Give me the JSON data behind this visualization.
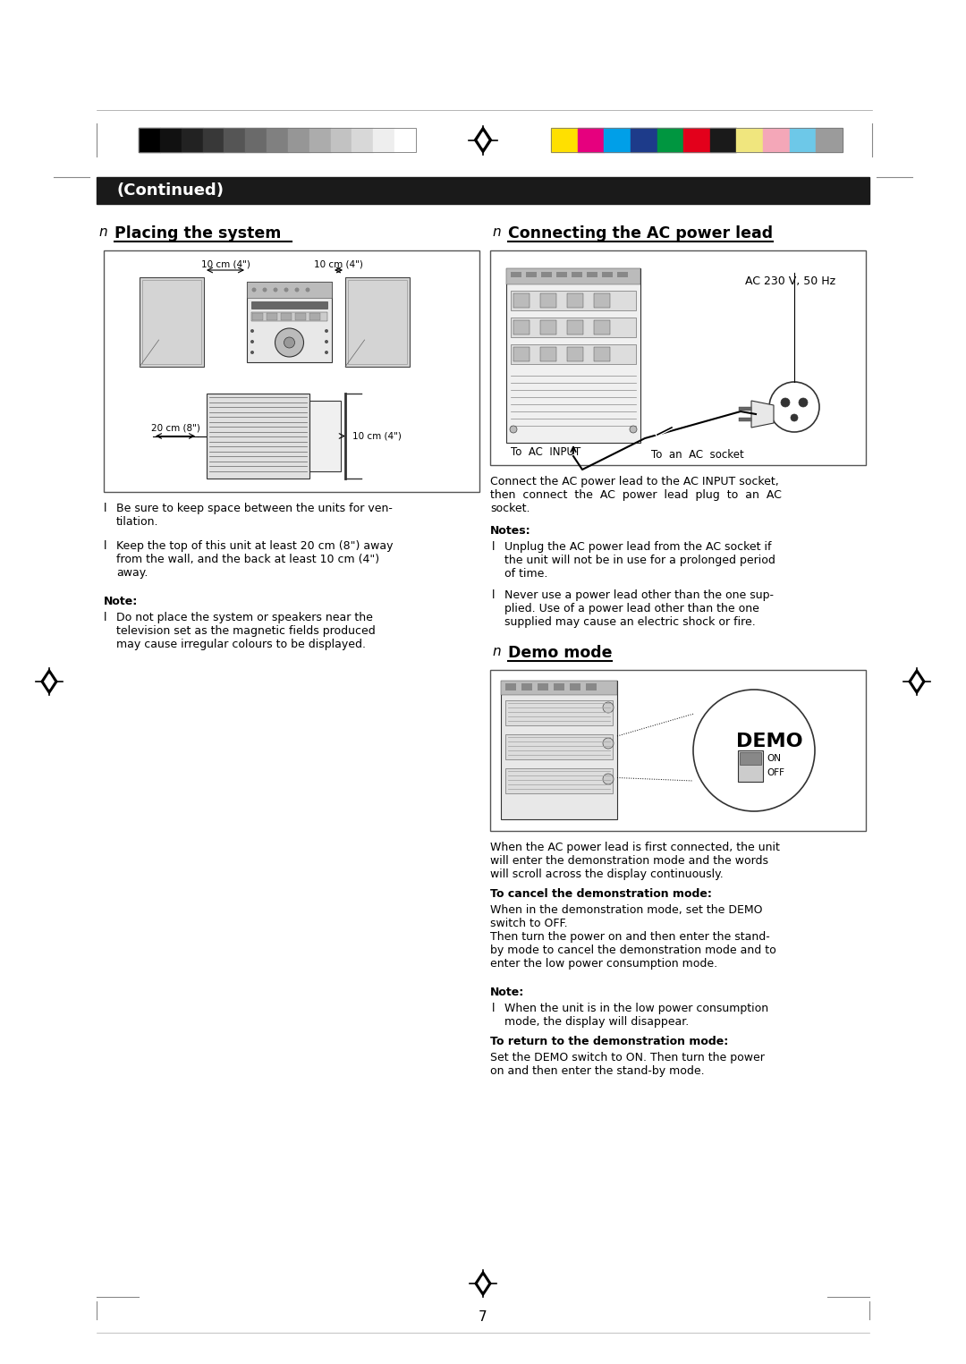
{
  "page_bg": "#ffffff",
  "page_num": "7",
  "grayscale_colors": [
    "#000000",
    "#111111",
    "#222222",
    "#383838",
    "#555555",
    "#6a6a6a",
    "#808080",
    "#969696",
    "#acacac",
    "#c2c2c2",
    "#d8d8d8",
    "#eeeeee",
    "#ffffff"
  ],
  "color_bar_colors": [
    "#ffe000",
    "#e6007e",
    "#009fe8",
    "#1d3b8a",
    "#009640",
    "#e3001b",
    "#1a1a1a",
    "#f0e67e",
    "#f4a7b8",
    "#6dc8e8",
    "#9b9b9b"
  ],
  "continued_bar_color": "#1a1a1a",
  "continued_text": "(Continued)",
  "section1_title": "Placing the system",
  "section2_title": "Connecting the AC power lead",
  "section3_title": "Demo mode",
  "placing_bullet1": "Be sure to keep space between the units for ven-\ntilation.",
  "placing_bullet2": "Keep the top of this unit at least 20 cm (8\") away\nfrom the wall, and the back at least 10 cm (4\")\naway.",
  "placing_note_title": "Note:",
  "placing_note_text": "Do not place the system or speakers near the\ntelevision set as the magnetic fields produced\nmay cause irregular colours to be displayed.",
  "ac_desc": "Connect the AC power lead to the AC INPUT socket,\nthen  connect  the  AC  power  lead  plug  to  an  AC\nsocket.",
  "ac_notes_title": "Notes:",
  "ac_note1": "Unplug the AC power lead from the AC socket if\nthe unit will not be in use for a prolonged period\nof time.",
  "ac_note2": "Never use a power lead other than the one sup-\nplied. Use of a power lead other than the one\nsupplied may cause an electric shock or fire.",
  "demo_desc": "When the AC power lead is first connected, the unit\nwill enter the demonstration mode and the words\nwill scroll across the display continuously.",
  "demo_cancel_title": "To cancel the demonstration mode:",
  "demo_cancel_text": "When in the demonstration mode, set the DEMO\nswitch to OFF.\nThen turn the power on and then enter the stand-\nby mode to cancel the demonstration mode and to\nenter the low power consumption mode.",
  "demo_note_title": "Note:",
  "demo_note_text": "When the unit is in the low power consumption\nmode, the display will disappear.",
  "demo_return_title": "To return to the demonstration mode:",
  "demo_return_text": "Set the DEMO switch to ON. Then turn the power\non and then enter the stand-by mode."
}
